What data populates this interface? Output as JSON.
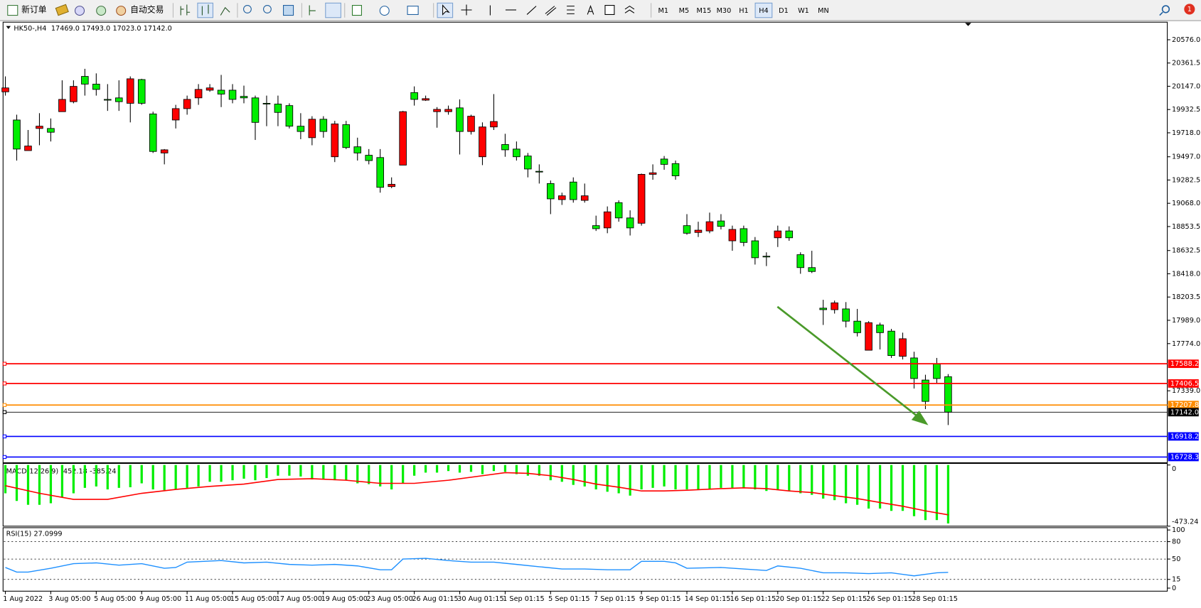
{
  "toolbar": {
    "new_order": "新订单",
    "auto_trading": "自动交易",
    "timeframes": [
      "M1",
      "M5",
      "M15",
      "M30",
      "H1",
      "H4",
      "D1",
      "W1",
      "MN"
    ],
    "notifications": 1
  },
  "chart_data": [
    {
      "type": "candlestick",
      "symbol": "HK50-,H4",
      "ohlc": [
        "17469.0",
        "17493.0",
        "17023.0",
        "17142.0"
      ],
      "up_color": "#ff0000",
      "down_color": "#00ee00",
      "categories": [
        "1 Aug 2022",
        null,
        null,
        null,
        "3 Aug 05:00",
        null,
        null,
        null,
        "5 Aug 05:00",
        null,
        null,
        null,
        "9 Aug 05:00",
        null,
        null,
        null,
        "11 Aug 05:00",
        null,
        null,
        null,
        "15 Aug 05:00",
        null,
        null,
        null,
        "17 Aug 05:00",
        null,
        null,
        null,
        "19 Aug 05:00",
        null,
        null,
        null,
        "23 Aug 05:00",
        null,
        null,
        null,
        "26 Aug 01:15",
        null,
        null,
        null,
        "30 Aug 01:15",
        null,
        null,
        null,
        "1 Sep 01:15",
        null,
        null,
        null,
        "5 Sep 01:15",
        null,
        null,
        null,
        "7 Sep 01:15",
        null,
        null,
        null,
        "9 Sep 01:15",
        null,
        null,
        null,
        "14 Sep 01:15",
        null,
        null,
        null,
        "16 Sep 01:15",
        null,
        null,
        null,
        "20 Sep 01:15",
        null,
        null,
        null,
        "22 Sep 01:15",
        null,
        null,
        null,
        "26 Sep 01:15",
        null,
        null,
        null,
        "28 Sep 01:15",
        null,
        null,
        null
      ],
      "open": [
        20096,
        19836,
        19554,
        19758,
        19758,
        19913,
        20005,
        20238,
        20167,
        20026,
        20040,
        19990,
        20209,
        19892,
        19532,
        19836,
        19941,
        20040,
        20111,
        20111,
        20111,
        20054,
        20040,
        19990,
        19983,
        19969,
        19779,
        19673,
        19843,
        19497,
        19793,
        19589,
        19511,
        19490,
        19222,
        19420,
        20089,
        20019,
        19913,
        19913,
        19948,
        19730,
        19497,
        19772,
        19610,
        19568,
        19504,
        19363,
        19250,
        19102,
        19264,
        19095,
        18862,
        18841,
        19074,
        18933,
        18884,
        19335,
        19476,
        19434,
        18862,
        18799,
        18813,
        18905,
        18722,
        18834,
        18722,
        18580,
        18750,
        18813,
        18594,
        18475,
        18101,
        18087,
        18094,
        17981,
        17713,
        17946,
        17889,
        17657,
        17642,
        17438,
        17586,
        17469
      ],
      "high": [
        20238,
        19885,
        19744,
        19899,
        19850,
        20202,
        20202,
        20308,
        20266,
        20167,
        20202,
        20238,
        20216,
        19913,
        19568,
        19976,
        20061,
        20167,
        20167,
        20252,
        20167,
        20153,
        20061,
        20061,
        20061,
        19990,
        19899,
        19871,
        19871,
        19828,
        19828,
        19673,
        19568,
        19568,
        19307,
        19920,
        20146,
        20061,
        19955,
        19969,
        20026,
        19885,
        19814,
        20075,
        19709,
        19638,
        19532,
        19427,
        19278,
        19166,
        19307,
        19250,
        18954,
        19039,
        19095,
        19003,
        19342,
        19427,
        19504,
        19462,
        18968,
        18898,
        18982,
        18968,
        18862,
        18862,
        18757,
        18616,
        18862,
        18855,
        18616,
        18630,
        18178,
        18171,
        18157,
        18094,
        17981,
        17967,
        17910,
        17875,
        17699,
        17487,
        17642,
        17493
      ],
      "low": [
        20061,
        19462,
        19554,
        19603,
        19638,
        19913,
        19990,
        20061,
        20061,
        19920,
        19920,
        19814,
        19976,
        19532,
        19427,
        19758,
        19885,
        19976,
        20096,
        19955,
        19990,
        19990,
        19652,
        19779,
        19779,
        19758,
        19659,
        19603,
        19673,
        19448,
        19568,
        19462,
        19427,
        19166,
        19208,
        19420,
        19969,
        20012,
        19765,
        19885,
        19518,
        19702,
        19420,
        19744,
        19497,
        19462,
        19307,
        19250,
        18968,
        19053,
        19074,
        19074,
        18813,
        18792,
        18898,
        18771,
        18862,
        19285,
        19377,
        19285,
        18778,
        18757,
        18792,
        18827,
        18630,
        18672,
        18503,
        18489,
        18665,
        18722,
        18418,
        18425,
        17946,
        18051,
        17924,
        17840,
        17713,
        17720,
        17642,
        17628,
        17360,
        17170,
        17403,
        17023
      ],
      "close": [
        20132,
        19568,
        19596,
        19779,
        19723,
        20026,
        20146,
        20167,
        20118,
        20019,
        20005,
        20216,
        19990,
        19546,
        19561,
        19941,
        20026,
        20118,
        20132,
        20075,
        20026,
        20040,
        19814,
        19983,
        19906,
        19779,
        19730,
        19843,
        19730,
        19800,
        19582,
        19532,
        19462,
        19215,
        19243,
        19913,
        20026,
        20033,
        19934,
        19934,
        19730,
        19871,
        19772,
        19822,
        19561,
        19497,
        19384,
        19356,
        19109,
        19137,
        19102,
        19137,
        18834,
        18989,
        18933,
        18841,
        19335,
        19349,
        19427,
        19321,
        18792,
        18820,
        18898,
        18855,
        18827,
        18707,
        18566,
        18573,
        18813,
        18750,
        18475,
        18439,
        18087,
        18150,
        17981,
        17875,
        17967,
        17875,
        17664,
        17819,
        17452,
        17241,
        17452,
        17142
      ],
      "ylim": [
        16683,
        20731
      ],
      "yticks": [
        {
          "value": 20576,
          "label": "20576.0"
        },
        20361.5,
        {
          "value": 20147,
          "label": "20147.0"
        },
        19932.5,
        {
          "value": 19718,
          "label": "19718.0"
        },
        {
          "value": 19497,
          "label": "19497.0"
        },
        19282.5,
        {
          "value": 19068,
          "label": "19068.0"
        },
        18853.5,
        18632.5,
        {
          "value": 18418,
          "label": "18418.0"
        },
        18203.5,
        {
          "value": 17989,
          "label": "17989.0"
        },
        {
          "value": 17774,
          "label": "17774.0"
        },
        {
          "value": 17339,
          "label": "17339.0"
        }
      ],
      "levels": [
        {
          "value": 17588.2,
          "color": "#ff0000"
        },
        {
          "value": 17406.5,
          "color": "#ff0000"
        },
        {
          "value": 17207.8,
          "color": "#ff8c00"
        },
        {
          "value": 17142,
          "label": "17142.0",
          "color": "#000000"
        },
        {
          "value": 16918.2,
          "color": "#0000ff"
        },
        {
          "value": 16728.3,
          "color": "#0000ff"
        }
      ]
    },
    {
      "type": "macd",
      "label": "MACD(12,26,9)",
      "main_value": -452.18,
      "signal_value": -385.24,
      "histogram": [
        -219,
        -278,
        -308,
        -308,
        -296,
        -248,
        -219,
        -177,
        -166,
        -189,
        -177,
        -172,
        -142,
        -189,
        -195,
        -189,
        -177,
        -166,
        -130,
        -130,
        -118,
        -106,
        -118,
        -101,
        -83,
        -83,
        -89,
        -112,
        -106,
        -118,
        -118,
        -142,
        -148,
        -166,
        -189,
        -142,
        -83,
        -59,
        -59,
        -47,
        -59,
        -53,
        -71,
        -47,
        -53,
        -71,
        -83,
        -83,
        -118,
        -130,
        -154,
        -166,
        -189,
        -207,
        -219,
        -237,
        -189,
        -177,
        -166,
        -189,
        -189,
        -189,
        -189,
        -177,
        -177,
        -177,
        -189,
        -201,
        -195,
        -201,
        -219,
        -231,
        -260,
        -272,
        -296,
        -308,
        -337,
        -337,
        -355,
        -355,
        -396,
        -426,
        -426,
        -452.18
      ],
      "histogram_color": "#00ee00",
      "signal": {
        "x": [
          0,
          3,
          6,
          9,
          12,
          15,
          18,
          21,
          24,
          27,
          30,
          33,
          36,
          39,
          42,
          44,
          46,
          48,
          50,
          52,
          54,
          56,
          58,
          60,
          63,
          65,
          67,
          69,
          71,
          73,
          75,
          77,
          79,
          81,
          83
        ],
        "values": [
          -160,
          -219,
          -266,
          -266,
          -219,
          -189,
          -166,
          -148,
          -112,
          -106,
          -118,
          -142,
          -142,
          -118,
          -83,
          -59,
          -65,
          -83,
          -112,
          -148,
          -172,
          -201,
          -201,
          -195,
          -183,
          -177,
          -183,
          -201,
          -213,
          -237,
          -260,
          -290,
          -319,
          -355,
          -385.24
        ],
        "color": "#ff0000"
      },
      "ylim": [
        -473.24,
        0
      ],
      "yticks": [
        0,
        -473.24
      ]
    },
    {
      "type": "rsi",
      "label": "RSI(15)",
      "value": 27.0999,
      "color": "#1e90ff",
      "x": [
        0,
        1,
        2,
        4,
        6,
        8,
        10,
        12,
        14,
        15,
        16,
        19,
        21,
        23,
        25,
        27,
        29,
        31,
        33,
        34,
        35,
        37,
        39,
        41,
        43,
        45,
        47,
        49,
        51,
        53,
        55,
        56,
        58,
        59,
        60,
        63,
        65,
        67,
        68,
        70,
        72,
        74,
        76,
        78,
        80,
        81,
        82,
        83
      ],
      "values": [
        35.5,
        27.6,
        27.6,
        34.2,
        42.1,
        43.4,
        39.5,
        42.1,
        34.2,
        35.5,
        44.7,
        47.4,
        43.4,
        44.7,
        40.8,
        39.5,
        40.8,
        38.2,
        31.6,
        31.6,
        50,
        51.3,
        47.4,
        44.7,
        44.7,
        40.8,
        36.8,
        32.9,
        32.9,
        31.6,
        31.6,
        46.1,
        46.1,
        43.4,
        34.2,
        35.5,
        32.9,
        30.3,
        38.2,
        34.2,
        26.3,
        26.3,
        25,
        26.3,
        21.1,
        23.7,
        26.3,
        27.0999
      ],
      "ylim": [
        0,
        100
      ],
      "yticks": [
        100,
        80,
        50,
        15,
        0
      ]
    }
  ]
}
